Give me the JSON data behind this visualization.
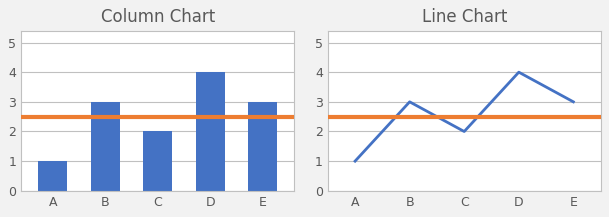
{
  "categories": [
    "A",
    "B",
    "C",
    "D",
    "E"
  ],
  "values": [
    1,
    3,
    2,
    4,
    3
  ],
  "horizontal_line_y": 2.5,
  "bar_color": "#4472C4",
  "line_color": "#4472C4",
  "hline_color": "#ED7D31",
  "title_left": "Column Chart",
  "title_right": "Line Chart",
  "ylim": [
    0,
    5.4
  ],
  "yticks": [
    0,
    1,
    2,
    3,
    4,
    5
  ],
  "background_color": "#F2F2F2",
  "plot_bg_color": "#FFFFFF",
  "grid_color": "#C0C0C0",
  "border_color": "#C0C0C0",
  "title_fontsize": 12,
  "tick_fontsize": 9,
  "hline_linewidth": 3.0,
  "line_linewidth": 2.0,
  "title_color": "#595959",
  "tick_color": "#595959"
}
